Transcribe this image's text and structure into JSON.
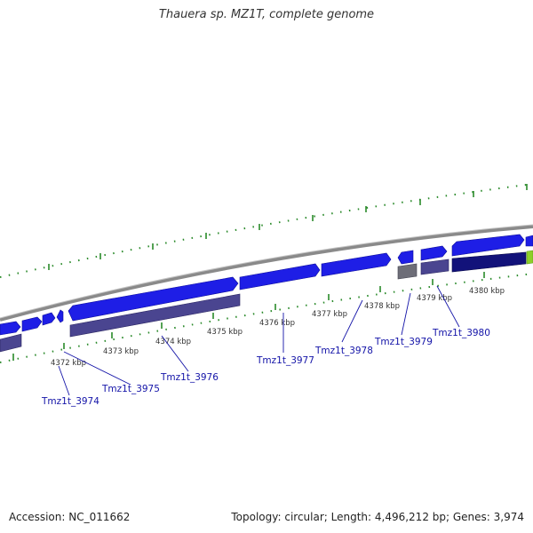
{
  "title": "Thauera sp. MZ1T, complete genome",
  "footer": {
    "accession": "Accession: NC_011662",
    "summary": "Topology: circular; Length: 4,496,212 bp; Genes: 3,974"
  },
  "colors": {
    "forward_gene": "#1e1ee6",
    "reverse_gene": "#4a4590",
    "reverse_gene_dark": "#12127a",
    "pseudo_gene": "#6e6e78",
    "backbone": "#8a8a8a",
    "tick": "#2a8a2a",
    "label": "#1414a8",
    "accent_green": "#8ecf2a"
  },
  "scale_labels": [
    "4372 kbp",
    "4373 kbp",
    "4374 kbp",
    "4375 kbp",
    "4376 kbp",
    "4377 kbp",
    "4378 kbp",
    "4379 kbp",
    "4380 kbp"
  ],
  "gene_labels": [
    "Tmz1t_3974",
    "Tmz1t_3975",
    "Tmz1t_3976",
    "Tmz1t_3977",
    "Tmz1t_3978",
    "Tmz1t_3979",
    "Tmz1t_3980"
  ]
}
